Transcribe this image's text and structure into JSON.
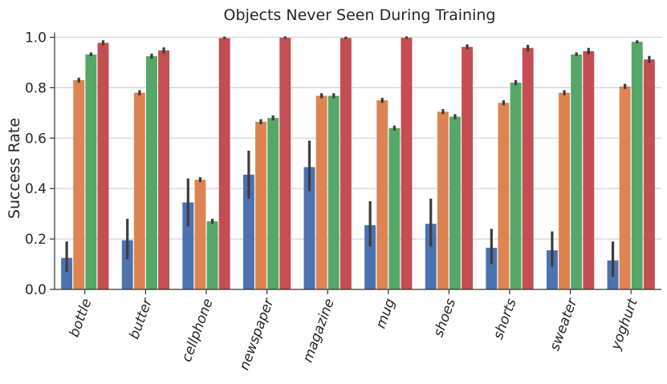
{
  "chart_data": {
    "type": "bar",
    "title": "Objects Never Seen During Training",
    "xlabel": "",
    "ylabel": "Success Rate",
    "ylim": [
      0,
      1.03
    ],
    "yticks": [
      "0.0",
      "0.2",
      "0.4",
      "0.6",
      "0.8",
      "1.0"
    ],
    "grid": "horizontal",
    "categories": [
      "bottle",
      "butter",
      "cellphone",
      "newspaper",
      "magazine",
      "mug",
      "shoes",
      "shorts",
      "sweater",
      "yoghurt"
    ],
    "series": [
      {
        "color": "#4c72b0",
        "values": [
          0.125,
          0.195,
          0.345,
          0.455,
          0.485,
          0.255,
          0.26,
          0.165,
          0.155,
          0.115
        ],
        "ci": [
          [
            0.07,
            0.19
          ],
          [
            0.12,
            0.28
          ],
          [
            0.25,
            0.44
          ],
          [
            0.36,
            0.55
          ],
          [
            0.39,
            0.59
          ],
          [
            0.17,
            0.35
          ],
          [
            0.17,
            0.36
          ],
          [
            0.1,
            0.24
          ],
          [
            0.09,
            0.23
          ],
          [
            0.05,
            0.19
          ]
        ]
      },
      {
        "color": "#dd8452",
        "values": [
          0.83,
          0.78,
          0.435,
          0.665,
          0.768,
          0.75,
          0.705,
          0.74,
          0.78,
          0.805
        ],
        "ci": [
          [
            0.82,
            0.84
          ],
          [
            0.77,
            0.79
          ],
          [
            0.425,
            0.445
          ],
          [
            0.655,
            0.675
          ],
          [
            0.758,
            0.778
          ],
          [
            0.74,
            0.76
          ],
          [
            0.695,
            0.715
          ],
          [
            0.73,
            0.75
          ],
          [
            0.77,
            0.79
          ],
          [
            0.795,
            0.815
          ]
        ]
      },
      {
        "color": "#55a868",
        "values": [
          0.932,
          0.925,
          0.27,
          0.68,
          0.768,
          0.64,
          0.685,
          0.82,
          0.932,
          0.982
        ],
        "ci": [
          [
            0.925,
            0.94
          ],
          [
            0.915,
            0.935
          ],
          [
            0.26,
            0.28
          ],
          [
            0.67,
            0.69
          ],
          [
            0.758,
            0.778
          ],
          [
            0.63,
            0.65
          ],
          [
            0.675,
            0.695
          ],
          [
            0.81,
            0.83
          ],
          [
            0.925,
            0.94
          ],
          [
            0.976,
            0.988
          ]
        ]
      },
      {
        "color": "#c44e52",
        "values": [
          0.978,
          0.948,
          0.997,
          0.998,
          0.997,
          0.998,
          0.962,
          0.958,
          0.945,
          0.912
        ],
        "ci": [
          [
            0.968,
            0.988
          ],
          [
            0.935,
            0.96
          ],
          [
            0.993,
            1.0
          ],
          [
            0.994,
            1.0
          ],
          [
            0.993,
            1.0
          ],
          [
            0.994,
            1.0
          ],
          [
            0.952,
            0.972
          ],
          [
            0.945,
            0.97
          ],
          [
            0.932,
            0.958
          ],
          [
            0.898,
            0.926
          ]
        ]
      }
    ]
  }
}
